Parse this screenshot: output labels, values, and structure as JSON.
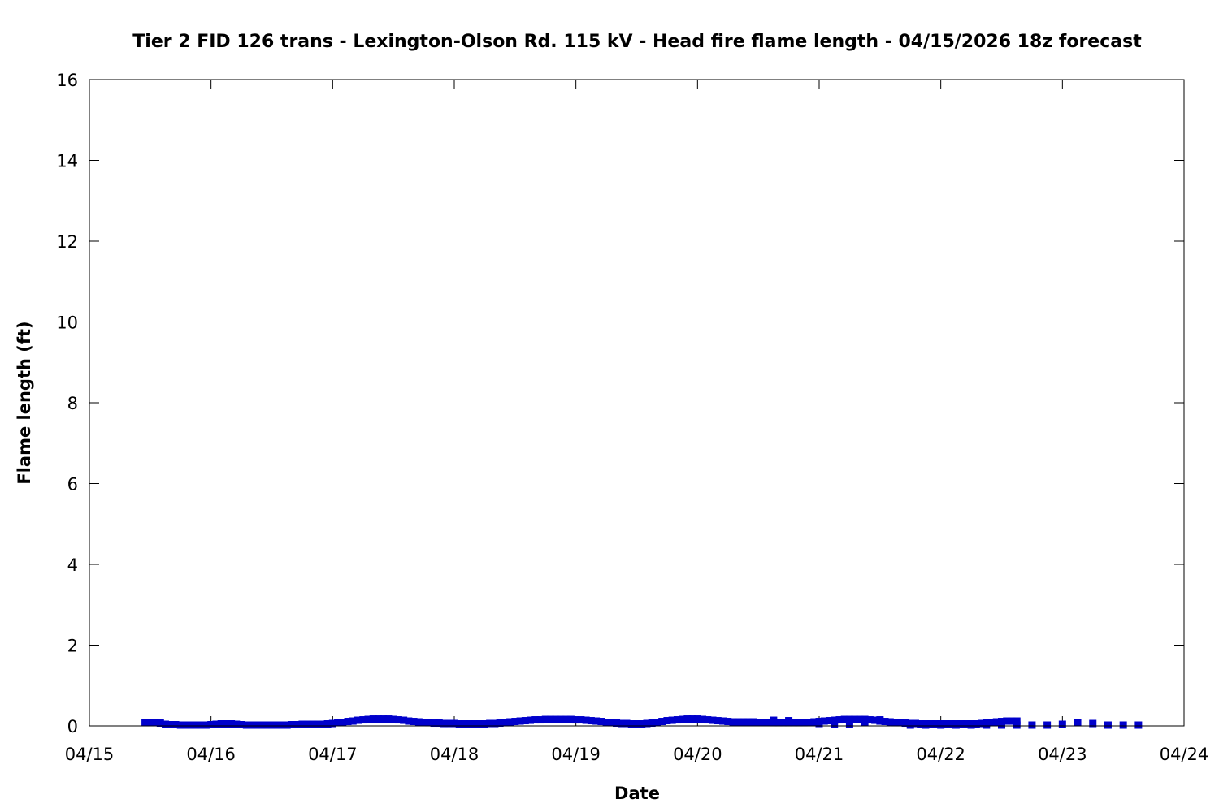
{
  "chart_data": {
    "type": "scatter",
    "title": "Tier 2 FID 126 trans - Lexington-Olson Rd. 115 kV - Head fire flame length - 04/15/2026 18z forecast",
    "xlabel": "Date",
    "ylabel": "Flame length (ft)",
    "x_ticks": [
      "04/15",
      "04/16",
      "04/17",
      "04/18",
      "04/19",
      "04/20",
      "04/21",
      "04/22",
      "04/23",
      "04/24"
    ],
    "y_ticks": [
      "0",
      "2",
      "4",
      "6",
      "8",
      "10",
      "12",
      "14",
      "16"
    ],
    "xlim_days": [
      0,
      9
    ],
    "ylim": [
      0,
      16
    ],
    "grid": false,
    "legend": "none",
    "marker": "square",
    "color": "#0000cc",
    "series": [
      {
        "hourly_from": "04/15 11:00",
        "step_hours": 1,
        "values": [
          0.08,
          0.08,
          0.09,
          0.07,
          0.04,
          0.03,
          0.03,
          0.02,
          0.02,
          0.02,
          0.02,
          0.02,
          0.02,
          0.03,
          0.04,
          0.05,
          0.05,
          0.05,
          0.04,
          0.03,
          0.02,
          0.02,
          0.02,
          0.02,
          0.02,
          0.02,
          0.02,
          0.02,
          0.02,
          0.03,
          0.03,
          0.04,
          0.04,
          0.04,
          0.04,
          0.04,
          0.05,
          0.06,
          0.08,
          0.09,
          0.11,
          0.12,
          0.14,
          0.15,
          0.16,
          0.17,
          0.17,
          0.17,
          0.17,
          0.16,
          0.15,
          0.14,
          0.12,
          0.11,
          0.1,
          0.09,
          0.08,
          0.07,
          0.07,
          0.06,
          0.06,
          0.06,
          0.05,
          0.05,
          0.05,
          0.05,
          0.05,
          0.05,
          0.06,
          0.06,
          0.07,
          0.08,
          0.1,
          0.11,
          0.12,
          0.13,
          0.14,
          0.15,
          0.15,
          0.16,
          0.16,
          0.16,
          0.16,
          0.16,
          0.16,
          0.15,
          0.15,
          0.14,
          0.13,
          0.12,
          0.11,
          0.09,
          0.08,
          0.07,
          0.06,
          0.06,
          0.05,
          0.05,
          0.05,
          0.06,
          0.07,
          0.09,
          0.11,
          0.13,
          0.14,
          0.15,
          0.16,
          0.17,
          0.17,
          0.17,
          0.16,
          0.15,
          0.14,
          0.13,
          0.12,
          0.11,
          0.1,
          0.1,
          0.1,
          0.1,
          0.1,
          0.09,
          0.09,
          0.09,
          0.08,
          0.08,
          0.08,
          0.08,
          0.08,
          0.08,
          0.08,
          0.09,
          0.1,
          0.11,
          0.12,
          0.13,
          0.14,
          0.15,
          0.16,
          0.16,
          0.16,
          0.16,
          0.16,
          0.15,
          0.14,
          0.12,
          0.11,
          0.1,
          0.09,
          0.08,
          0.07,
          0.06,
          0.06,
          0.05,
          0.05,
          0.05,
          0.05,
          0.05,
          0.05,
          0.05,
          0.05,
          0.05,
          0.05,
          0.05,
          0.05,
          0.06,
          0.07,
          0.09,
          0.1,
          0.11,
          0.12,
          0.12,
          0.12
        ]
      },
      {
        "three_hourly_from": "04/20 15:00",
        "step_hours": 3,
        "values": [
          0.14,
          0.13,
          0.09,
          0.06,
          0.04,
          0.05,
          0.09,
          0.15,
          0.08,
          0.02,
          0.02,
          0.02,
          0.02,
          0.02,
          0.02,
          0.02,
          0.02,
          0.02,
          0.02,
          0.04,
          0.08,
          0.06,
          0.02,
          0.02,
          0.02
        ]
      }
    ]
  }
}
